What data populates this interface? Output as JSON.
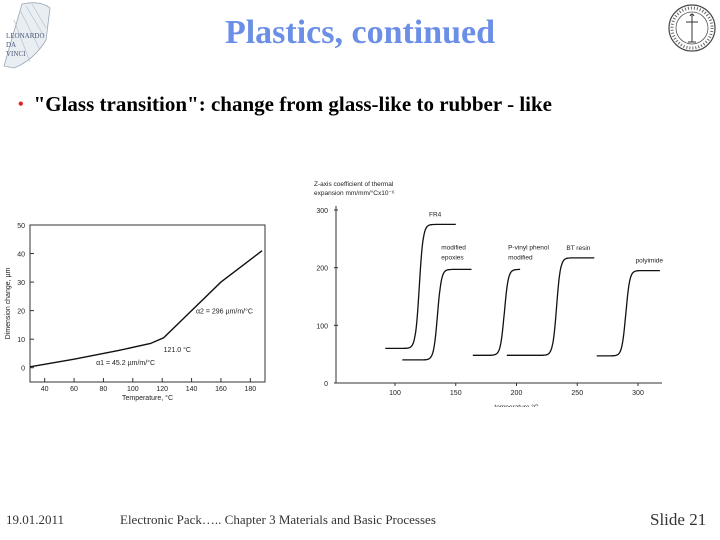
{
  "slide": {
    "title": "Plastics, continued",
    "bullet": "\"Glass transition\": change from glass-like to rubber - like",
    "left_logo_text": [
      "LEONARDO",
      "DA",
      "VINCI"
    ],
    "footer_date": "19.01.2011",
    "footer_course": "Electronic Pack….. Chapter 3 Materials and Basic Processes",
    "slide_number": "Slide 21"
  },
  "figure_left": {
    "ylabel": "Dimension change, µm",
    "xlabel": "Temperature, °C",
    "xticks": [
      40,
      60,
      80,
      100,
      120,
      140,
      160,
      180
    ],
    "yticks": [
      0,
      10,
      20,
      30,
      40,
      50
    ],
    "xlim": [
      30,
      190
    ],
    "ylim": [
      -5,
      50
    ],
    "line": [
      [
        30,
        0.3
      ],
      [
        60,
        3
      ],
      [
        90,
        6
      ],
      [
        112,
        8.5
      ],
      [
        121,
        10.5
      ],
      [
        140,
        20
      ],
      [
        160,
        30
      ],
      [
        188,
        41
      ]
    ],
    "annotations": {
      "alpha1": "α1 = 45.2 µm/m/°C",
      "alpha2": "α2 = 296 µm/m/°C",
      "tg": "121.0 °C"
    }
  },
  "figure_right": {
    "ylabel_line1": "Z-axis coefficient of thermal",
    "ylabel_line2": "expansion mm/mm/°Cx10⁻⁶",
    "xlabel": "temperature °C",
    "xticks": [
      100,
      150,
      200,
      250,
      300
    ],
    "yticks": [
      0,
      100,
      200,
      300
    ],
    "xlim": [
      55,
      340
    ],
    "ylim": [
      0,
      300
    ],
    "series": [
      {
        "name": "FR4",
        "x_start": 92,
        "x_end": 150,
        "low": 60,
        "high": 275,
        "tg": 120
      },
      {
        "name": "modified epoxies",
        "x_start": 106,
        "x_end": 163,
        "low": 40,
        "high": 197,
        "tg": 135
      },
      {
        "name": "P-vinyl phenol modified",
        "x_start": 164,
        "x_end": 203,
        "low": 48,
        "high": 197,
        "tg": 190
      },
      {
        "name": "BT resin",
        "x_start": 192,
        "x_end": 264,
        "low": 48,
        "high": 217,
        "tg": 233
      },
      {
        "name": "polyimide",
        "x_start": 266,
        "x_end": 318,
        "low": 47,
        "high": 195,
        "tg": 290
      }
    ]
  }
}
